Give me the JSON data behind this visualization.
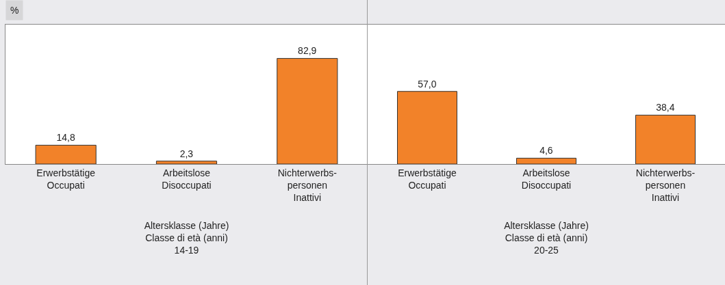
{
  "chart_data": [
    {
      "type": "bar",
      "ylabel": "%",
      "xlabel": "Altersklasse (Jahre)\nClasse di età (anni)\n14-19",
      "categories": [
        "Erwerbstätige\nOccupati",
        "Arbeitslose\nDisoccupati",
        "Nichterwerbs-\npersonen\nInattivi"
      ],
      "values": [
        14.8,
        2.3,
        82.9
      ],
      "value_labels": [
        "14,8",
        "2,3",
        "82,9"
      ],
      "color": "#f28229",
      "tick_labels": "x",
      "grid": false,
      "legend": false
    },
    {
      "type": "bar",
      "xlabel": "Altersklasse (Jahre)\nClasse di età (anni)\n20-25",
      "categories": [
        "Erwerbstätige\nOccupati",
        "Arbeitslose\nDisoccupati",
        "Nichterwerbs-\npersonen\nInattivi"
      ],
      "values": [
        57.0,
        4.6,
        38.4
      ],
      "value_labels": [
        "57,0",
        "4,6",
        "38,4"
      ],
      "color": "#f28229",
      "tick_labels": "x",
      "grid": false,
      "legend": false
    }
  ]
}
